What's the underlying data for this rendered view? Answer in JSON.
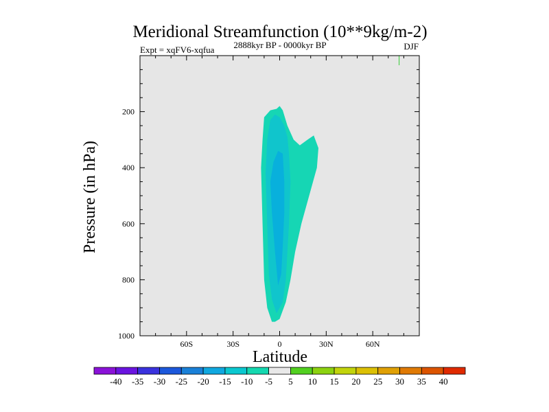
{
  "chart_data": {
    "type": "contour",
    "title": "Meridional Streamfunction (10**9kg/m-2)",
    "subtitle_left": "Expt = xqFV6-xqfua",
    "subtitle_center": "2888kyr BP - 0000kyr BP",
    "subtitle_right": "DJF",
    "xlabel": "Latitude",
    "ylabel": "Pressure (in hPa)",
    "xlim": [
      -90,
      90
    ],
    "ylim": [
      1000,
      0
    ],
    "x_ticks": [
      {
        "value": -60,
        "label": "60S"
      },
      {
        "value": -30,
        "label": "30S"
      },
      {
        "value": 0,
        "label": "0"
      },
      {
        "value": 30,
        "label": "30N"
      },
      {
        "value": 60,
        "label": "60N"
      }
    ],
    "y_ticks": [
      {
        "value": 200,
        "label": "200"
      },
      {
        "value": 400,
        "label": "400"
      },
      {
        "value": 600,
        "label": "600"
      },
      {
        "value": 800,
        "label": "800"
      },
      {
        "value": 1000,
        "label": "1000"
      }
    ],
    "background_color": "#e6e6e6",
    "contour_fills": [
      {
        "name": "band-minus5-to-minus10",
        "color": "#16d6b4",
        "points": [
          [
            -5,
            950
          ],
          [
            -8,
            900
          ],
          [
            -10,
            800
          ],
          [
            -11,
            600
          ],
          [
            -12,
            400
          ],
          [
            -11,
            300
          ],
          [
            -10,
            220
          ],
          [
            -6,
            195
          ],
          [
            -2,
            190
          ],
          [
            0,
            180
          ],
          [
            2,
            195
          ],
          [
            5,
            250
          ],
          [
            9,
            300
          ],
          [
            13,
            320
          ],
          [
            18,
            300
          ],
          [
            22,
            285
          ],
          [
            25,
            330
          ],
          [
            24,
            400
          ],
          [
            19,
            500
          ],
          [
            14,
            600
          ],
          [
            10,
            700
          ],
          [
            7,
            800
          ],
          [
            4,
            880
          ],
          [
            0,
            940
          ],
          [
            -3,
            950
          ]
        ]
      },
      {
        "name": "band-minus10-to-minus15",
        "color": "#10c5cc",
        "points": [
          [
            -2,
            920
          ],
          [
            -5,
            870
          ],
          [
            -7,
            780
          ],
          [
            -8,
            600
          ],
          [
            -9,
            420
          ],
          [
            -8,
            300
          ],
          [
            -6,
            230
          ],
          [
            -3,
            210
          ],
          [
            0,
            220
          ],
          [
            3,
            250
          ],
          [
            5,
            290
          ],
          [
            6,
            350
          ],
          [
            7,
            450
          ],
          [
            6,
            600
          ],
          [
            5,
            700
          ],
          [
            4,
            800
          ],
          [
            2,
            880
          ]
        ]
      },
      {
        "name": "band-minus15-to-minus20",
        "color": "#08b0dc",
        "points": [
          [
            -1,
            820
          ],
          [
            -3,
            700
          ],
          [
            -5,
            560
          ],
          [
            -6,
            450
          ],
          [
            -4,
            380
          ],
          [
            -1,
            340
          ],
          [
            2,
            350
          ],
          [
            3,
            450
          ],
          [
            3,
            560
          ],
          [
            2,
            680
          ],
          [
            1,
            780
          ]
        ]
      }
    ],
    "marker": {
      "x": 77,
      "y": 10,
      "color": "#33cc33"
    },
    "legend": {
      "labels": [
        "-40",
        "-35",
        "-30",
        "-25",
        "-20",
        "-15",
        "-10",
        "-5",
        "5",
        "10",
        "15",
        "20",
        "25",
        "30",
        "35",
        "40"
      ],
      "colors": [
        "#8a12d8",
        "#6a14e0",
        "#3a32de",
        "#1c58dc",
        "#1a80d8",
        "#10a8e0",
        "#0ac8d0",
        "#14d8b0",
        "#e8e8e8",
        "#52d020",
        "#8cd210",
        "#c2d40c",
        "#dcc004",
        "#e0a004",
        "#e07a04",
        "#dc5400",
        "#e02a00"
      ]
    }
  }
}
